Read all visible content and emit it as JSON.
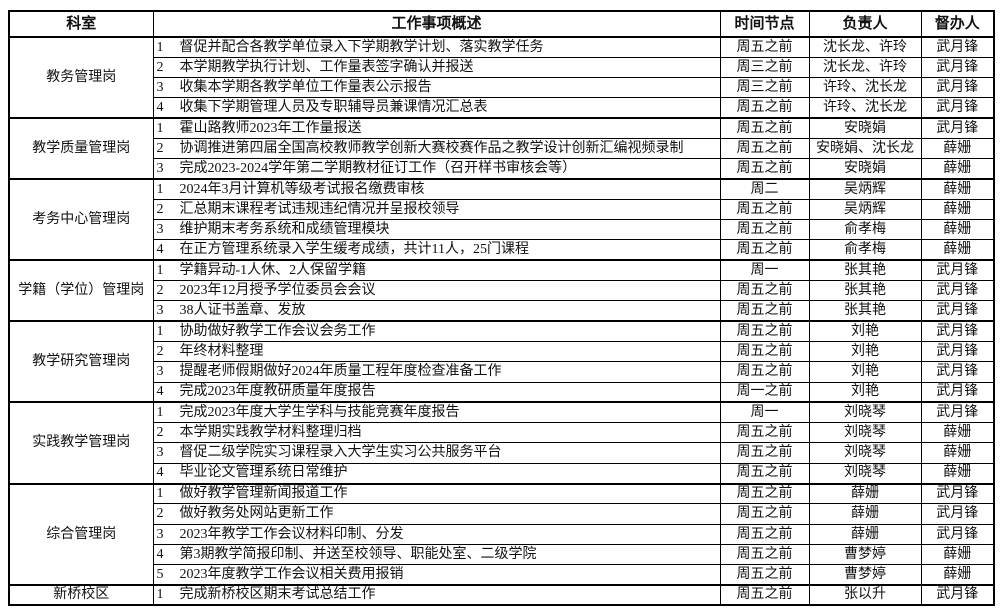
{
  "table": {
    "headers": [
      {
        "key": "department",
        "label": "科室"
      },
      {
        "key": "summary",
        "label": "工作事项概述"
      },
      {
        "key": "deadline",
        "label": "时间节点"
      },
      {
        "key": "owner",
        "label": "负责人"
      },
      {
        "key": "supervisor",
        "label": "督办人"
      }
    ],
    "groups": [
      {
        "department": "教务管理岗",
        "tasks": [
          {
            "num": "1",
            "desc": "督促并配合各教学单位录入下学期教学计划、落实教学任务",
            "deadline": "周五之前",
            "owner": "沈长龙、许玲",
            "supervisor": "武月锋"
          },
          {
            "num": "2",
            "desc": "本学期教学执行计划、工作量表签字确认并报送",
            "deadline": "周三之前",
            "owner": "沈长龙、许玲",
            "supervisor": "武月锋"
          },
          {
            "num": "3",
            "desc": "收集本学期各教学单位工作量表公示报告",
            "deadline": "周三之前",
            "owner": "许玲、沈长龙",
            "supervisor": "武月锋"
          },
          {
            "num": "4",
            "desc": "收集下学期管理人员及专职辅导员兼课情况汇总表",
            "deadline": "周五之前",
            "owner": "许玲、沈长龙",
            "supervisor": "武月锋"
          }
        ]
      },
      {
        "department": "教学质量管理岗",
        "tasks": [
          {
            "num": "1",
            "desc": "霍山路教师2023年工作量报送",
            "deadline": "周五之前",
            "owner": "安晓娟",
            "supervisor": "武月锋"
          },
          {
            "num": "2",
            "desc": "协调推进第四届全国高校教师教学创新大赛校赛作品之教学设计创新汇编视频录制",
            "deadline": "周五之前",
            "owner": "安晓娟、沈长龙",
            "supervisor": "薛姗"
          },
          {
            "num": "3",
            "desc": "完成2023-2024学年第二学期教材征订工作（召开样书审核会等）",
            "deadline": "周五之前",
            "owner": "安晓娟",
            "supervisor": "薛姗"
          }
        ]
      },
      {
        "department": "考务中心管理岗",
        "tasks": [
          {
            "num": "1",
            "desc": "2024年3月计算机等级考试报名缴费审核",
            "deadline": "周二",
            "owner": "吴炳辉",
            "supervisor": "薛姗"
          },
          {
            "num": "2",
            "desc": "汇总期末课程考试违规违纪情况并呈报校领导",
            "deadline": "周五之前",
            "owner": "吴炳辉",
            "supervisor": "薛姗"
          },
          {
            "num": "3",
            "desc": "维护期末考务系统和成绩管理模块",
            "deadline": "周五之前",
            "owner": "俞孝梅",
            "supervisor": "薛姗"
          },
          {
            "num": "4",
            "desc": "在正方管理系统录入学生缓考成绩，共计11人，25门课程",
            "deadline": "周五之前",
            "owner": "俞孝梅",
            "supervisor": "薛姗"
          }
        ]
      },
      {
        "department": "学籍（学位）管理岗",
        "tasks": [
          {
            "num": "1",
            "desc": "学籍异动-1人休、2人保留学籍",
            "deadline": "周一",
            "owner": "张其艳",
            "supervisor": "武月锋"
          },
          {
            "num": "2",
            "desc": "2023年12月授予学位委员会会议",
            "deadline": "周五之前",
            "owner": "张其艳",
            "supervisor": "武月锋"
          },
          {
            "num": "3",
            "desc": "38人证书盖章、发放",
            "deadline": "周五之前",
            "owner": "张其艳",
            "supervisor": "武月锋"
          }
        ]
      },
      {
        "department": "教学研究管理岗",
        "tasks": [
          {
            "num": "1",
            "desc": "协助做好教学工作会议会务工作",
            "deadline": "周五之前",
            "owner": "刘艳",
            "supervisor": "武月锋"
          },
          {
            "num": "2",
            "desc": "年终材料整理",
            "deadline": "周五之前",
            "owner": "刘艳",
            "supervisor": "武月锋"
          },
          {
            "num": "3",
            "desc": "提醒老师假期做好2024年质量工程年度检查准备工作",
            "deadline": "周五之前",
            "owner": "刘艳",
            "supervisor": "武月锋"
          },
          {
            "num": "4",
            "desc": "完成2023年度教研质量年度报告",
            "deadline": "周一之前",
            "owner": "刘艳",
            "supervisor": "武月锋"
          }
        ]
      },
      {
        "department": "实践教学管理岗",
        "tasks": [
          {
            "num": "1",
            "desc": "完成2023年度大学生学科与技能竞赛年度报告",
            "deadline": "周一",
            "owner": "刘晓琴",
            "supervisor": "武月锋"
          },
          {
            "num": "2",
            "desc": "本学期实践教学材料整理归档",
            "deadline": "周五之前",
            "owner": "刘晓琴",
            "supervisor": "薛姗"
          },
          {
            "num": "3",
            "desc": "督促二级学院实习课程录入大学生实习公共服务平台",
            "deadline": "周五之前",
            "owner": "刘晓琴",
            "supervisor": "薛姗"
          },
          {
            "num": "4",
            "desc": "毕业论文管理系统日常维护",
            "deadline": "周五之前",
            "owner": "刘晓琴",
            "supervisor": "薛姗"
          }
        ]
      },
      {
        "department": "综合管理岗",
        "tasks": [
          {
            "num": "1",
            "desc": "做好教学管理新闻报道工作",
            "deadline": "周五之前",
            "owner": "薛姗",
            "supervisor": "武月锋"
          },
          {
            "num": "2",
            "desc": "做好教务处网站更新工作",
            "deadline": "周五之前",
            "owner": "薛姗",
            "supervisor": "武月锋"
          },
          {
            "num": "3",
            "desc": "2023年教学工作会议材料印制、分发",
            "deadline": "周五之前",
            "owner": "薛姗",
            "supervisor": "武月锋"
          },
          {
            "num": "4",
            "desc": "第3期教学简报印制、并送至校领导、职能处室、二级学院",
            "deadline": "周五之前",
            "owner": "曹梦婷",
            "supervisor": "薛姗"
          },
          {
            "num": "5",
            "desc": "2023年度教学工作会议相关费用报销",
            "deadline": "周五之前",
            "owner": "曹梦婷",
            "supervisor": "薛姗"
          }
        ]
      },
      {
        "department": "新桥校区",
        "tasks": [
          {
            "num": "1",
            "desc": "完成新桥校区期末考试总结工作",
            "deadline": "周五之前",
            "owner": "张以升",
            "supervisor": "武月锋"
          }
        ]
      }
    ]
  }
}
